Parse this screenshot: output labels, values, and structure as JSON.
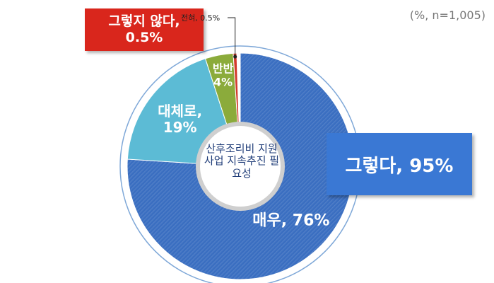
{
  "chart_data": {
    "type": "donut",
    "center_label": "산후조리비 지원사업 지속추진 필요성",
    "note": "(%, n=1,005)",
    "values": [
      76,
      19,
      4,
      0.5
    ],
    "value_labels": [
      "매우, 76%",
      "대체로, 19%",
      "반반 4%",
      "전혀, 0.5%"
    ],
    "colors": [
      "#3b6fc1",
      "#5cbbd5",
      "#8bab3b",
      "#d23a2c"
    ],
    "annotations": [
      {
        "text": "그렇다, 95%",
        "color": "#3a78d4"
      },
      {
        "text": "그렇지 않다, 0.5%",
        "color": "#d9261c"
      }
    ]
  }
}
